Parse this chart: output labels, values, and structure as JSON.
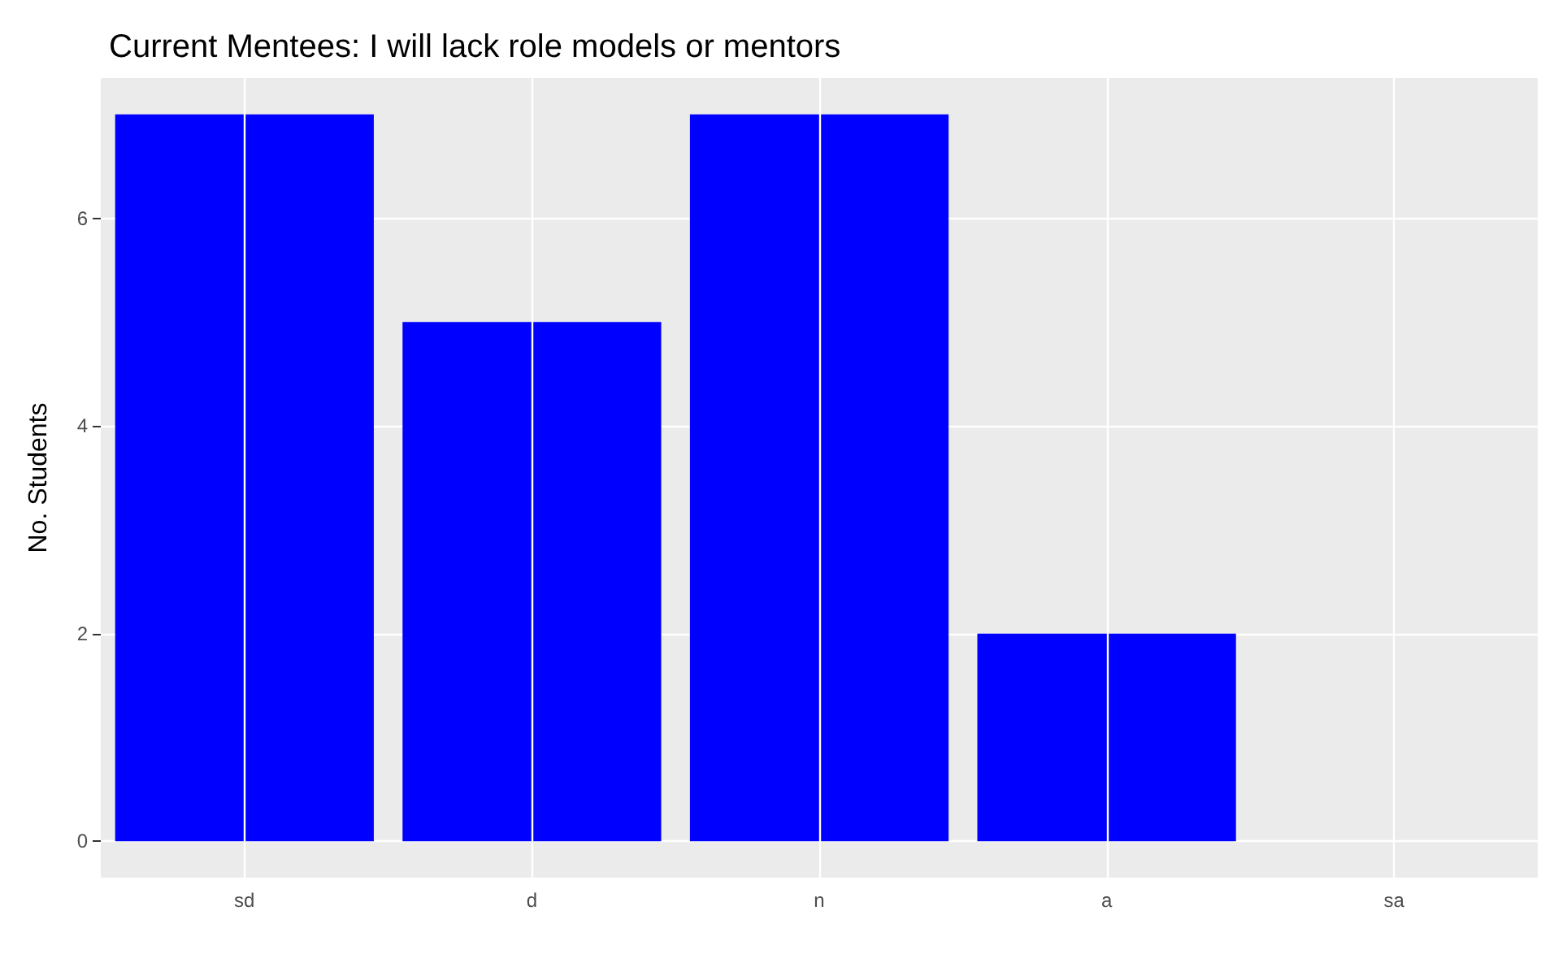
{
  "chart_data": {
    "type": "bar",
    "title": "Current Mentees: I will lack role models or mentors",
    "ylabel": "No. Students",
    "categories": [
      "sd",
      "d",
      "n",
      "a",
      "sa"
    ],
    "values": [
      7,
      5,
      7,
      2,
      0
    ],
    "color": "#0000ff",
    "ylim": [
      -0.35,
      7.35
    ],
    "yticks": [
      0,
      2,
      4,
      6
    ],
    "grid": true
  }
}
